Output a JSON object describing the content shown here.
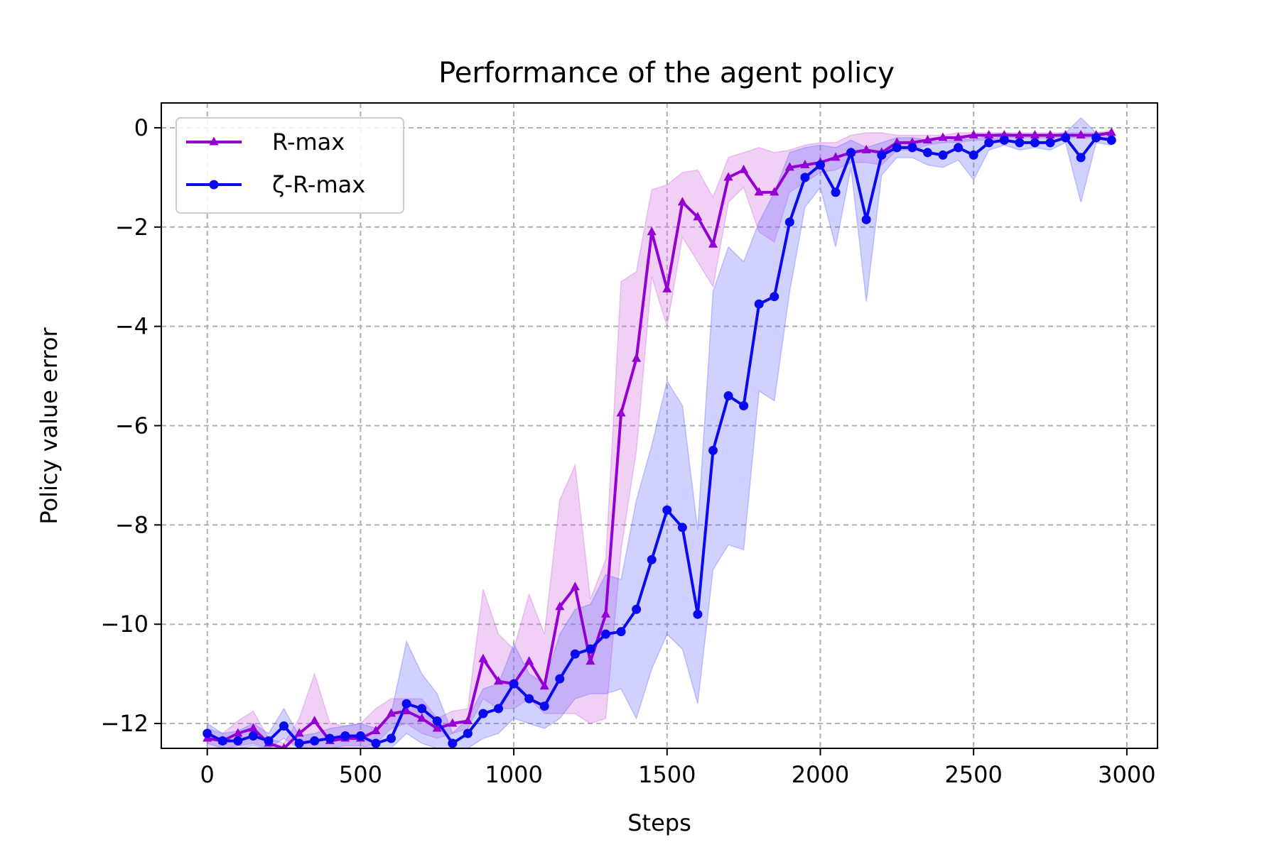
{
  "chart_data": {
    "type": "line",
    "title": "Performance of the agent policy",
    "xlabel": "Steps",
    "ylabel": "Policy value error",
    "xlim": [
      -150,
      3100
    ],
    "ylim": [
      -12.5,
      0.5
    ],
    "xticks": [
      0,
      500,
      1000,
      1500,
      2000,
      2500,
      3000
    ],
    "yticks": [
      0,
      -2,
      -4,
      -6,
      -8,
      -10,
      -12
    ],
    "grid": true,
    "legend_position": "top-left",
    "x": [
      0,
      50,
      100,
      150,
      200,
      250,
      300,
      350,
      400,
      450,
      500,
      550,
      600,
      650,
      700,
      750,
      800,
      850,
      900,
      950,
      1000,
      1050,
      1100,
      1150,
      1200,
      1250,
      1300,
      1350,
      1400,
      1450,
      1500,
      1550,
      1600,
      1650,
      1700,
      1750,
      1800,
      1850,
      1900,
      1950,
      2000,
      2050,
      2100,
      2150,
      2200,
      2250,
      2300,
      2350,
      2400,
      2450,
      2500,
      2550,
      2600,
      2650,
      2700,
      2750,
      2800,
      2850,
      2900,
      2950
    ],
    "series": [
      {
        "name": "R-max",
        "color": "#9400D3",
        "marker": "triangle",
        "values": [
          -12.3,
          -12.35,
          -12.2,
          -12.1,
          -12.4,
          -12.5,
          -12.2,
          -11.95,
          -12.35,
          -12.3,
          -12.3,
          -12.15,
          -11.8,
          -11.75,
          -11.9,
          -12.1,
          -12.0,
          -11.95,
          -10.7,
          -11.15,
          -11.2,
          -10.75,
          -11.25,
          -9.65,
          -9.25,
          -10.75,
          -9.8,
          -5.75,
          -4.65,
          -2.1,
          -3.25,
          -1.5,
          -1.8,
          -2.35,
          -1.0,
          -0.85,
          -1.3,
          -1.3,
          -0.8,
          -0.75,
          -0.7,
          -0.6,
          -0.5,
          -0.45,
          -0.5,
          -0.3,
          -0.3,
          -0.25,
          -0.2,
          -0.2,
          -0.15,
          -0.15,
          -0.15,
          -0.15,
          -0.15,
          -0.15,
          -0.15,
          -0.15,
          -0.15,
          -0.1
        ],
        "lower": [
          -12.5,
          -12.5,
          -12.45,
          -12.4,
          -12.5,
          -12.5,
          -12.5,
          -12.5,
          -12.5,
          -12.5,
          -12.5,
          -12.4,
          -12.1,
          -12.0,
          -12.2,
          -12.3,
          -12.2,
          -12.1,
          -11.5,
          -11.7,
          -11.7,
          -11.5,
          -11.8,
          -11.8,
          -11.8,
          -12.0,
          -11.9,
          -8.5,
          -6.5,
          -3.0,
          -4.0,
          -2.2,
          -2.7,
          -3.2,
          -1.5,
          -1.2,
          -2.1,
          -2.3,
          -1.3,
          -1.1,
          -0.9,
          -0.85,
          -0.7,
          -0.7,
          -0.75,
          -0.45,
          -0.45,
          -0.35,
          -0.3,
          -0.3,
          -0.25,
          -0.25,
          -0.2,
          -0.2,
          -0.2,
          -0.2,
          -0.2,
          -0.2,
          -0.2,
          -0.2
        ],
        "upper": [
          -12.1,
          -12.2,
          -11.95,
          -11.75,
          -12.3,
          -12.4,
          -11.9,
          -11.0,
          -12.0,
          -12.05,
          -12.0,
          -11.7,
          -11.5,
          -11.5,
          -11.5,
          -11.9,
          -11.75,
          -11.7,
          -9.3,
          -10.2,
          -10.5,
          -9.4,
          -10.2,
          -7.5,
          -6.8,
          -9.5,
          -8.7,
          -3.1,
          -2.9,
          -1.25,
          -1.15,
          -0.9,
          -0.85,
          -1.4,
          -0.6,
          -0.5,
          -0.4,
          -0.5,
          -0.45,
          -0.35,
          -0.3,
          -0.3,
          -0.15,
          -0.1,
          -0.1,
          -0.15,
          -0.15,
          -0.15,
          -0.15,
          -0.1,
          -0.1,
          -0.1,
          -0.1,
          -0.1,
          -0.1,
          -0.1,
          -0.1,
          -0.1,
          -0.1,
          -0.05
        ]
      },
      {
        "name": "ζ-R-max",
        "color": "#0A0AEE",
        "marker": "circle",
        "values": [
          -12.2,
          -12.35,
          -12.35,
          -12.25,
          -12.35,
          -12.05,
          -12.4,
          -12.35,
          -12.3,
          -12.25,
          -12.25,
          -12.4,
          -12.3,
          -11.6,
          -11.7,
          -11.95,
          -12.4,
          -12.2,
          -11.8,
          -11.7,
          -11.2,
          -11.5,
          -11.65,
          -11.1,
          -10.6,
          -10.5,
          -10.2,
          -10.15,
          -9.7,
          -8.7,
          -7.7,
          -8.05,
          -9.8,
          -6.5,
          -5.4,
          -5.6,
          -3.55,
          -3.4,
          -1.9,
          -1.0,
          -0.75,
          -1.3,
          -0.5,
          -1.85,
          -0.55,
          -0.4,
          -0.4,
          -0.5,
          -0.55,
          -0.4,
          -0.55,
          -0.3,
          -0.25,
          -0.3,
          -0.3,
          -0.3,
          -0.2,
          -0.6,
          -0.2,
          -0.25
        ],
        "lower": [
          -12.4,
          -12.5,
          -12.5,
          -12.45,
          -12.5,
          -12.3,
          -12.5,
          -12.5,
          -12.5,
          -12.45,
          -12.45,
          -12.5,
          -12.5,
          -12.2,
          -12.4,
          -12.5,
          -12.5,
          -12.5,
          -12.3,
          -12.2,
          -11.9,
          -12.0,
          -12.1,
          -11.9,
          -11.5,
          -11.4,
          -11.4,
          -11.3,
          -11.9,
          -10.9,
          -10.2,
          -10.5,
          -11.6,
          -8.9,
          -8.4,
          -8.5,
          -5.3,
          -5.5,
          -3.3,
          -1.6,
          -1.2,
          -2.4,
          -0.8,
          -3.5,
          -0.95,
          -0.6,
          -0.6,
          -0.75,
          -0.8,
          -0.65,
          -1.05,
          -0.45,
          -0.35,
          -0.45,
          -0.4,
          -0.45,
          -0.3,
          -1.5,
          -0.3,
          -0.35
        ],
        "upper": [
          -12.0,
          -12.2,
          -12.15,
          -12.0,
          -12.2,
          -11.7,
          -12.25,
          -12.2,
          -12.1,
          -12.05,
          -12.0,
          -12.1,
          -11.8,
          -10.35,
          -11.0,
          -11.4,
          -12.2,
          -11.9,
          -11.3,
          -11.2,
          -10.4,
          -11.0,
          -11.2,
          -10.2,
          -9.7,
          -9.6,
          -9.0,
          -9.1,
          -7.5,
          -6.4,
          -5.1,
          -5.6,
          -8.1,
          -3.3,
          -2.4,
          -2.7,
          -1.9,
          -1.3,
          -0.5,
          -0.4,
          -0.35,
          -0.4,
          -0.25,
          -0.4,
          -0.3,
          -0.2,
          -0.2,
          -0.25,
          -0.3,
          -0.2,
          -0.25,
          -0.15,
          -0.1,
          -0.15,
          -0.15,
          -0.15,
          -0.1,
          0.2,
          -0.1,
          -0.1
        ]
      }
    ]
  }
}
